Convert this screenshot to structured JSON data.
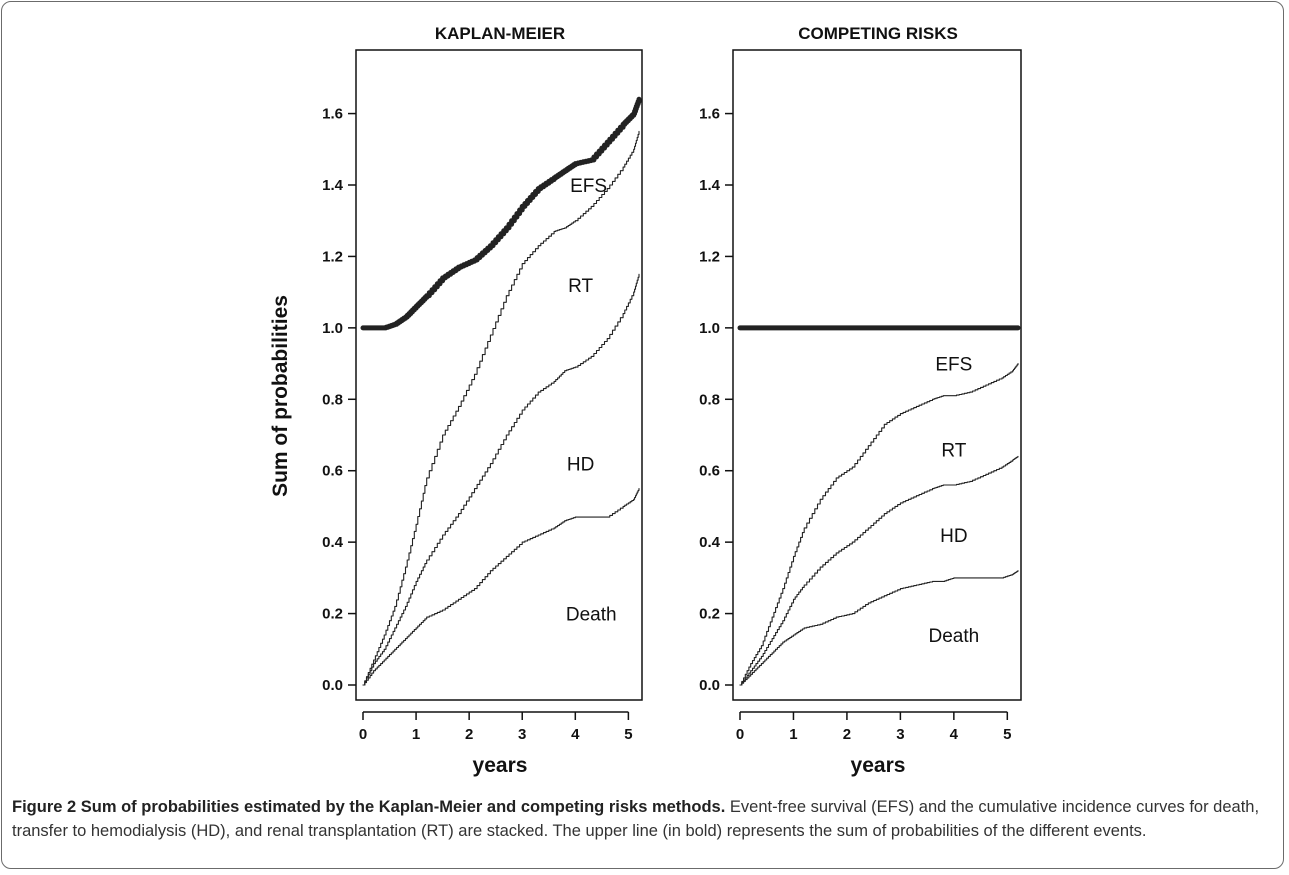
{
  "figure": {
    "caption_bold": "Figure 2 Sum of probabilities estimated by the Kaplan-Meier and competing risks methods.",
    "caption_text": " Event-free survival (EFS) and the cumulative incidence curves for death, transfer to hemodialysis (HD), and renal transplantation (RT) are stacked. The upper line (in bold) represents the sum of probabilities of the different events."
  },
  "chart_data": [
    {
      "type": "line",
      "title": "KAPLAN-MEIER",
      "xlabel": "years",
      "ylabel": "Sum of probabilities",
      "xlim": [
        0,
        5.2
      ],
      "ylim": [
        0,
        1.75
      ],
      "x_ticks": [
        "0",
        "1",
        "2",
        "3",
        "4",
        "5"
      ],
      "y_ticks": [
        "0.0",
        "0.2",
        "0.4",
        "0.6",
        "0.8",
        "1.0",
        "1.2",
        "1.4",
        "1.6"
      ],
      "region_labels": [
        {
          "text": "EFS",
          "x": 4.25,
          "y": 1.4
        },
        {
          "text": "RT",
          "x": 4.1,
          "y": 1.12
        },
        {
          "text": "HD",
          "x": 4.1,
          "y": 0.62
        },
        {
          "text": "Death",
          "x": 4.3,
          "y": 0.2
        }
      ],
      "series": [
        {
          "id": "death",
          "bold": false,
          "x": [
            0,
            0.2,
            0.4,
            0.6,
            0.8,
            1.0,
            1.2,
            1.5,
            1.8,
            2.1,
            2.4,
            2.7,
            3.0,
            3.3,
            3.6,
            3.8,
            4.0,
            4.3,
            4.6,
            4.9,
            5.1,
            5.2
          ],
          "y": [
            0,
            0.04,
            0.07,
            0.1,
            0.13,
            0.16,
            0.19,
            0.21,
            0.24,
            0.27,
            0.32,
            0.36,
            0.4,
            0.42,
            0.44,
            0.46,
            0.47,
            0.47,
            0.47,
            0.5,
            0.52,
            0.55
          ]
        },
        {
          "id": "hd",
          "bold": false,
          "x": [
            0,
            0.2,
            0.4,
            0.6,
            0.8,
            1.0,
            1.2,
            1.5,
            1.8,
            2.1,
            2.4,
            2.7,
            3.0,
            3.3,
            3.6,
            3.8,
            4.0,
            4.3,
            4.6,
            4.9,
            5.1,
            5.2
          ],
          "y": [
            0,
            0.06,
            0.1,
            0.16,
            0.22,
            0.29,
            0.35,
            0.42,
            0.48,
            0.55,
            0.62,
            0.7,
            0.77,
            0.82,
            0.85,
            0.88,
            0.89,
            0.92,
            0.97,
            1.04,
            1.1,
            1.15
          ]
        },
        {
          "id": "rt",
          "bold": false,
          "x": [
            0,
            0.2,
            0.4,
            0.6,
            0.8,
            1.0,
            1.2,
            1.5,
            1.8,
            2.1,
            2.4,
            2.7,
            3.0,
            3.3,
            3.6,
            3.8,
            4.0,
            4.3,
            4.6,
            4.9,
            5.1,
            5.2
          ],
          "y": [
            0,
            0.07,
            0.14,
            0.22,
            0.33,
            0.45,
            0.58,
            0.7,
            0.78,
            0.87,
            0.98,
            1.09,
            1.18,
            1.23,
            1.27,
            1.28,
            1.3,
            1.34,
            1.39,
            1.45,
            1.5,
            1.55
          ]
        },
        {
          "id": "sum",
          "bold": true,
          "x": [
            0,
            0.2,
            0.4,
            0.6,
            0.8,
            1.0,
            1.2,
            1.5,
            1.8,
            2.1,
            2.4,
            2.7,
            3.0,
            3.3,
            3.6,
            3.8,
            4.0,
            4.3,
            4.6,
            4.9,
            5.1,
            5.2
          ],
          "y": [
            1.0,
            1.0,
            1.0,
            1.01,
            1.03,
            1.06,
            1.09,
            1.14,
            1.17,
            1.19,
            1.23,
            1.28,
            1.34,
            1.39,
            1.42,
            1.44,
            1.46,
            1.47,
            1.52,
            1.57,
            1.6,
            1.64
          ]
        }
      ]
    },
    {
      "type": "line",
      "title": "COMPETING RISKS",
      "xlabel": "years",
      "ylabel": "",
      "xlim": [
        0,
        5.2
      ],
      "ylim": [
        0,
        1.75
      ],
      "x_ticks": [
        "0",
        "1",
        "2",
        "3",
        "4",
        "5"
      ],
      "y_ticks": [
        "0.0",
        "0.2",
        "0.4",
        "0.6",
        "0.8",
        "1.0",
        "1.2",
        "1.4",
        "1.6"
      ],
      "region_labels": [
        {
          "text": "EFS",
          "x": 4.0,
          "y": 0.9
        },
        {
          "text": "RT",
          "x": 4.0,
          "y": 0.66
        },
        {
          "text": "HD",
          "x": 4.0,
          "y": 0.42
        },
        {
          "text": "Death",
          "x": 4.0,
          "y": 0.14
        }
      ],
      "series": [
        {
          "id": "death",
          "bold": false,
          "x": [
            0,
            0.2,
            0.4,
            0.6,
            0.8,
            1.0,
            1.2,
            1.5,
            1.8,
            2.1,
            2.4,
            2.7,
            3.0,
            3.3,
            3.6,
            3.8,
            4.0,
            4.3,
            4.6,
            4.9,
            5.1,
            5.2
          ],
          "y": [
            0,
            0.03,
            0.06,
            0.09,
            0.12,
            0.14,
            0.16,
            0.17,
            0.19,
            0.2,
            0.23,
            0.25,
            0.27,
            0.28,
            0.29,
            0.29,
            0.3,
            0.3,
            0.3,
            0.3,
            0.31,
            0.32
          ]
        },
        {
          "id": "hd",
          "bold": false,
          "x": [
            0,
            0.2,
            0.4,
            0.6,
            0.8,
            1.0,
            1.2,
            1.5,
            1.8,
            2.1,
            2.4,
            2.7,
            3.0,
            3.3,
            3.6,
            3.8,
            4.0,
            4.3,
            4.6,
            4.9,
            5.1,
            5.2
          ],
          "y": [
            0,
            0.04,
            0.08,
            0.13,
            0.18,
            0.24,
            0.28,
            0.33,
            0.37,
            0.4,
            0.44,
            0.48,
            0.51,
            0.53,
            0.55,
            0.56,
            0.56,
            0.57,
            0.59,
            0.61,
            0.63,
            0.64
          ]
        },
        {
          "id": "rt",
          "bold": false,
          "x": [
            0,
            0.2,
            0.4,
            0.6,
            0.8,
            1.0,
            1.2,
            1.5,
            1.8,
            2.1,
            2.4,
            2.7,
            3.0,
            3.3,
            3.6,
            3.8,
            4.0,
            4.3,
            4.6,
            4.9,
            5.1,
            5.2
          ],
          "y": [
            0,
            0.06,
            0.11,
            0.19,
            0.27,
            0.36,
            0.44,
            0.52,
            0.58,
            0.61,
            0.67,
            0.73,
            0.76,
            0.78,
            0.8,
            0.81,
            0.81,
            0.82,
            0.84,
            0.86,
            0.88,
            0.9
          ]
        },
        {
          "id": "sum",
          "bold": true,
          "x": [
            0,
            5.2
          ],
          "y": [
            1.0,
            1.0
          ]
        }
      ]
    }
  ]
}
